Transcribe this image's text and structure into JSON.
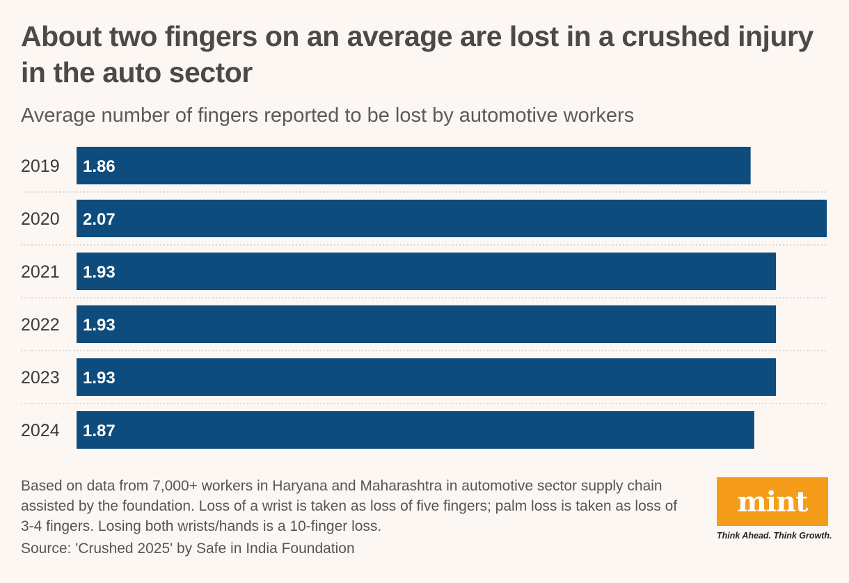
{
  "header": {
    "title": "About two fingers on an average are lost in a crushed injury in the auto sector",
    "subtitle": "Average number of fingers reported to be lost by automotive workers"
  },
  "chart_data": {
    "type": "bar",
    "orientation": "horizontal",
    "categories": [
      "2019",
      "2020",
      "2021",
      "2022",
      "2023",
      "2024"
    ],
    "values": [
      1.86,
      2.07,
      1.93,
      1.93,
      1.93,
      1.87
    ],
    "value_labels": [
      "1.86",
      "2.07",
      "1.93",
      "1.93",
      "1.93",
      "1.87"
    ],
    "title": "About two fingers on an average are lost in a crushed injury in the auto sector",
    "subtitle": "Average number of fingers reported to be lost by automotive workers",
    "xlabel": "",
    "ylabel": "",
    "xlim": [
      0,
      2.07
    ],
    "grid": false,
    "legend": "none",
    "bar_color": "#0d4c7c",
    "label_color": "#ffffff",
    "separator_color": "#c9c2be"
  },
  "footer": {
    "note": "Based on data from 7,000+ workers in Haryana and Maharashtra in automotive sector supply chain assisted by the foundation. Loss of a wrist is taken as loss of five fingers; palm loss is taken as loss of 3-4 fingers. Losing both wrists/hands is a 10-finger loss.",
    "source": "Source: 'Crushed 2025' by Safe in India Foundation"
  },
  "brand": {
    "logo_text": "mint",
    "tagline": "Think Ahead. Think Growth.",
    "logo_color": "#f59d1b"
  }
}
